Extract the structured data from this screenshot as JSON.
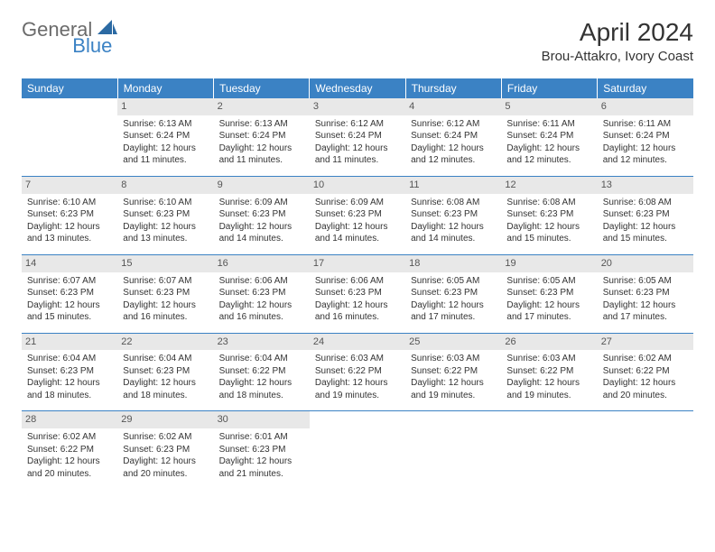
{
  "brand": {
    "part1": "General",
    "part2": "Blue",
    "icon_color": "#2b6aa3"
  },
  "title": "April 2024",
  "location": "Brou-Attakro, Ivory Coast",
  "colors": {
    "header_bg": "#3b82c4",
    "header_text": "#ffffff",
    "daynum_bg": "#e8e8e8",
    "daynum_text": "#555555",
    "cell_border": "#3b82c4",
    "body_text": "#333333"
  },
  "weekdays": [
    "Sunday",
    "Monday",
    "Tuesday",
    "Wednesday",
    "Thursday",
    "Friday",
    "Saturday"
  ],
  "weeks": [
    [
      {
        "empty": true
      },
      {
        "day": "1",
        "sunrise": "Sunrise: 6:13 AM",
        "sunset": "Sunset: 6:24 PM",
        "dl1": "Daylight: 12 hours",
        "dl2": "and 11 minutes."
      },
      {
        "day": "2",
        "sunrise": "Sunrise: 6:13 AM",
        "sunset": "Sunset: 6:24 PM",
        "dl1": "Daylight: 12 hours",
        "dl2": "and 11 minutes."
      },
      {
        "day": "3",
        "sunrise": "Sunrise: 6:12 AM",
        "sunset": "Sunset: 6:24 PM",
        "dl1": "Daylight: 12 hours",
        "dl2": "and 11 minutes."
      },
      {
        "day": "4",
        "sunrise": "Sunrise: 6:12 AM",
        "sunset": "Sunset: 6:24 PM",
        "dl1": "Daylight: 12 hours",
        "dl2": "and 12 minutes."
      },
      {
        "day": "5",
        "sunrise": "Sunrise: 6:11 AM",
        "sunset": "Sunset: 6:24 PM",
        "dl1": "Daylight: 12 hours",
        "dl2": "and 12 minutes."
      },
      {
        "day": "6",
        "sunrise": "Sunrise: 6:11 AM",
        "sunset": "Sunset: 6:24 PM",
        "dl1": "Daylight: 12 hours",
        "dl2": "and 12 minutes."
      }
    ],
    [
      {
        "day": "7",
        "sunrise": "Sunrise: 6:10 AM",
        "sunset": "Sunset: 6:23 PM",
        "dl1": "Daylight: 12 hours",
        "dl2": "and 13 minutes."
      },
      {
        "day": "8",
        "sunrise": "Sunrise: 6:10 AM",
        "sunset": "Sunset: 6:23 PM",
        "dl1": "Daylight: 12 hours",
        "dl2": "and 13 minutes."
      },
      {
        "day": "9",
        "sunrise": "Sunrise: 6:09 AM",
        "sunset": "Sunset: 6:23 PM",
        "dl1": "Daylight: 12 hours",
        "dl2": "and 14 minutes."
      },
      {
        "day": "10",
        "sunrise": "Sunrise: 6:09 AM",
        "sunset": "Sunset: 6:23 PM",
        "dl1": "Daylight: 12 hours",
        "dl2": "and 14 minutes."
      },
      {
        "day": "11",
        "sunrise": "Sunrise: 6:08 AM",
        "sunset": "Sunset: 6:23 PM",
        "dl1": "Daylight: 12 hours",
        "dl2": "and 14 minutes."
      },
      {
        "day": "12",
        "sunrise": "Sunrise: 6:08 AM",
        "sunset": "Sunset: 6:23 PM",
        "dl1": "Daylight: 12 hours",
        "dl2": "and 15 minutes."
      },
      {
        "day": "13",
        "sunrise": "Sunrise: 6:08 AM",
        "sunset": "Sunset: 6:23 PM",
        "dl1": "Daylight: 12 hours",
        "dl2": "and 15 minutes."
      }
    ],
    [
      {
        "day": "14",
        "sunrise": "Sunrise: 6:07 AM",
        "sunset": "Sunset: 6:23 PM",
        "dl1": "Daylight: 12 hours",
        "dl2": "and 15 minutes."
      },
      {
        "day": "15",
        "sunrise": "Sunrise: 6:07 AM",
        "sunset": "Sunset: 6:23 PM",
        "dl1": "Daylight: 12 hours",
        "dl2": "and 16 minutes."
      },
      {
        "day": "16",
        "sunrise": "Sunrise: 6:06 AM",
        "sunset": "Sunset: 6:23 PM",
        "dl1": "Daylight: 12 hours",
        "dl2": "and 16 minutes."
      },
      {
        "day": "17",
        "sunrise": "Sunrise: 6:06 AM",
        "sunset": "Sunset: 6:23 PM",
        "dl1": "Daylight: 12 hours",
        "dl2": "and 16 minutes."
      },
      {
        "day": "18",
        "sunrise": "Sunrise: 6:05 AM",
        "sunset": "Sunset: 6:23 PM",
        "dl1": "Daylight: 12 hours",
        "dl2": "and 17 minutes."
      },
      {
        "day": "19",
        "sunrise": "Sunrise: 6:05 AM",
        "sunset": "Sunset: 6:23 PM",
        "dl1": "Daylight: 12 hours",
        "dl2": "and 17 minutes."
      },
      {
        "day": "20",
        "sunrise": "Sunrise: 6:05 AM",
        "sunset": "Sunset: 6:23 PM",
        "dl1": "Daylight: 12 hours",
        "dl2": "and 17 minutes."
      }
    ],
    [
      {
        "day": "21",
        "sunrise": "Sunrise: 6:04 AM",
        "sunset": "Sunset: 6:23 PM",
        "dl1": "Daylight: 12 hours",
        "dl2": "and 18 minutes."
      },
      {
        "day": "22",
        "sunrise": "Sunrise: 6:04 AM",
        "sunset": "Sunset: 6:23 PM",
        "dl1": "Daylight: 12 hours",
        "dl2": "and 18 minutes."
      },
      {
        "day": "23",
        "sunrise": "Sunrise: 6:04 AM",
        "sunset": "Sunset: 6:22 PM",
        "dl1": "Daylight: 12 hours",
        "dl2": "and 18 minutes."
      },
      {
        "day": "24",
        "sunrise": "Sunrise: 6:03 AM",
        "sunset": "Sunset: 6:22 PM",
        "dl1": "Daylight: 12 hours",
        "dl2": "and 19 minutes."
      },
      {
        "day": "25",
        "sunrise": "Sunrise: 6:03 AM",
        "sunset": "Sunset: 6:22 PM",
        "dl1": "Daylight: 12 hours",
        "dl2": "and 19 minutes."
      },
      {
        "day": "26",
        "sunrise": "Sunrise: 6:03 AM",
        "sunset": "Sunset: 6:22 PM",
        "dl1": "Daylight: 12 hours",
        "dl2": "and 19 minutes."
      },
      {
        "day": "27",
        "sunrise": "Sunrise: 6:02 AM",
        "sunset": "Sunset: 6:22 PM",
        "dl1": "Daylight: 12 hours",
        "dl2": "and 20 minutes."
      }
    ],
    [
      {
        "day": "28",
        "sunrise": "Sunrise: 6:02 AM",
        "sunset": "Sunset: 6:22 PM",
        "dl1": "Daylight: 12 hours",
        "dl2": "and 20 minutes."
      },
      {
        "day": "29",
        "sunrise": "Sunrise: 6:02 AM",
        "sunset": "Sunset: 6:23 PM",
        "dl1": "Daylight: 12 hours",
        "dl2": "and 20 minutes."
      },
      {
        "day": "30",
        "sunrise": "Sunrise: 6:01 AM",
        "sunset": "Sunset: 6:23 PM",
        "dl1": "Daylight: 12 hours",
        "dl2": "and 21 minutes."
      },
      {
        "empty": true
      },
      {
        "empty": true
      },
      {
        "empty": true
      },
      {
        "empty": true
      }
    ]
  ]
}
